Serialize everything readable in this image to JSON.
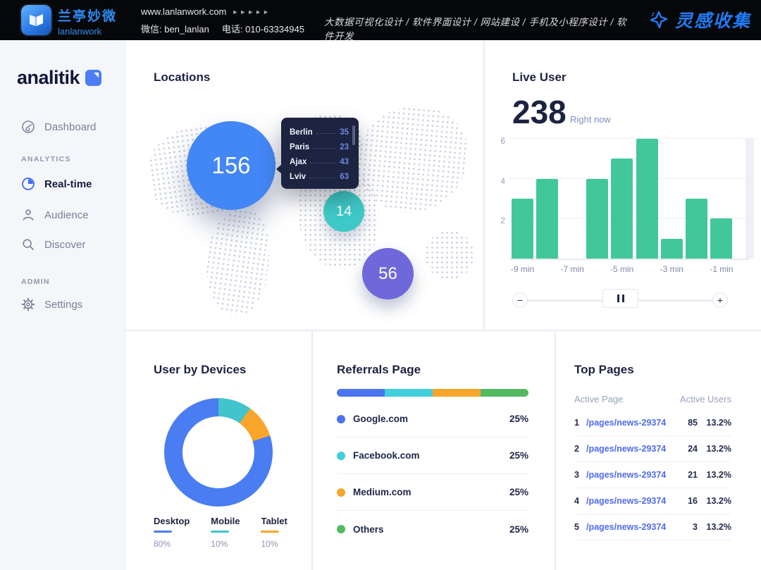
{
  "header": {
    "brand_cn": "兰亭妙微",
    "brand_en": "lanlanwork",
    "website": "www.lanlanwork.com",
    "website_arrows": "►►►►►",
    "wechat": "微信: ben_lanlan",
    "phone": "电话: 010-63334945",
    "services": "大数据可视化设计 / 软件界面设计 / 网站建设 / 手机及小程序设计 / 软件开发",
    "collect_label": "灵感收集",
    "accent_color": "#1f7cf5"
  },
  "sidebar": {
    "logo": "analitik",
    "dashboard_label": "Dashboard",
    "sections": [
      {
        "label": "ANALYTICS",
        "items": [
          {
            "label": "Real-time"
          },
          {
            "label": "Audience"
          },
          {
            "label": "Discover"
          }
        ]
      },
      {
        "label": "ADMIN",
        "items": [
          {
            "label": "Settings"
          }
        ]
      }
    ],
    "active_item": "Real-time"
  },
  "locations": {
    "title": "Locations",
    "bubbles": [
      {
        "value": "156",
        "color": "#4386f5"
      },
      {
        "value": "14",
        "color": "#3fc9c6"
      },
      {
        "value": "56",
        "color": "#6f68da"
      }
    ],
    "tooltip": {
      "rows": [
        {
          "city": "Berlin",
          "value": "35"
        },
        {
          "city": "Paris",
          "value": "23"
        },
        {
          "city": "Ajax",
          "value": "43"
        },
        {
          "city": "Lviv",
          "value": "63"
        }
      ]
    }
  },
  "live_user": {
    "title": "Live User",
    "count": "238",
    "caption": "Right now",
    "chart_data": {
      "type": "bar",
      "values": [
        3,
        4,
        0,
        4,
        5,
        6,
        1,
        3,
        2
      ],
      "x_tick_labels": {
        "0": "-9 min",
        "2": "-7 min",
        "4": "-5 min",
        "6": "-3 min",
        "8": "-1 min"
      },
      "y_ticks": [
        2,
        4,
        6
      ],
      "ylim": [
        0,
        6
      ],
      "bar_color": "#42c79b",
      "grid": true
    },
    "slider": {
      "minus": "−",
      "plus": "+"
    }
  },
  "devices": {
    "title": "User by Devices",
    "chart_data": {
      "type": "pie",
      "donut": true,
      "start_at_top": true,
      "segments": [
        {
          "label": "Mobile",
          "value": 10,
          "color": "#41c4cc"
        },
        {
          "label": "Tablet",
          "value": 10,
          "color": "#f8a62b"
        },
        {
          "label": "Desktop",
          "value": 80,
          "color": "#4a7cf2"
        }
      ]
    },
    "legend": [
      {
        "label": "Desktop",
        "pct": "80%",
        "color": "#4a7cf2"
      },
      {
        "label": "Mobile",
        "pct": "10%",
        "color": "#41c4cc"
      },
      {
        "label": "Tablet",
        "pct": "10%",
        "color": "#f8a62b"
      }
    ]
  },
  "referrals": {
    "title": "Referrals Page",
    "chart_data": {
      "type": "bar",
      "subtype": "stacked-horizontal",
      "segments": [
        {
          "label": "Google.com",
          "value": 25,
          "color": "#4b74ef"
        },
        {
          "label": "Facebook.com",
          "value": 25,
          "color": "#41cfdb"
        },
        {
          "label": "Medium.com",
          "value": 25,
          "color": "#f8a62b"
        },
        {
          "label": "Others",
          "value": 25,
          "color": "#53ba62"
        }
      ]
    },
    "items": [
      {
        "label": "Google.com",
        "pct": "25%",
        "color": "#4b74ef"
      },
      {
        "label": "Facebook.com",
        "pct": "25%",
        "color": "#41cfdb"
      },
      {
        "label": "Medium.com",
        "pct": "25%",
        "color": "#f8a62b"
      },
      {
        "label": "Others",
        "pct": "25%",
        "color": "#53ba62"
      }
    ]
  },
  "top_pages": {
    "title": "Top Pages",
    "col_page": "Active Page",
    "col_users": "Active Users",
    "rows": [
      {
        "rank": "1",
        "page": "/pages/news-29374",
        "users": "85",
        "pct": "13.2%"
      },
      {
        "rank": "2",
        "page": "/pages/news-29374",
        "users": "24",
        "pct": "13.2%"
      },
      {
        "rank": "3",
        "page": "/pages/news-29374",
        "users": "21",
        "pct": "13.2%"
      },
      {
        "rank": "4",
        "page": "/pages/news-29374",
        "users": "16",
        "pct": "13.2%"
      },
      {
        "rank": "5",
        "page": "/pages/news-29374",
        "users": "3",
        "pct": "13.2%"
      }
    ]
  }
}
